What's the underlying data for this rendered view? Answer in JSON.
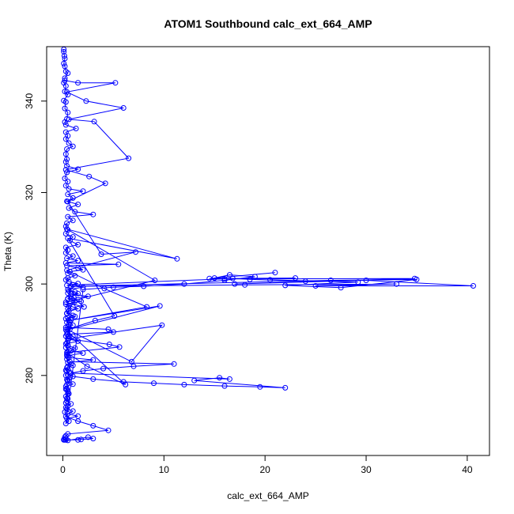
{
  "chart_data": {
    "type": "scatter",
    "title": "ATOM1 Southbound calc_ext_664_AMP",
    "xlabel": "calc_ext_664_AMP",
    "ylabel": "Theta (K)",
    "xlim": [
      -1.6,
      42.2
    ],
    "ylim": [
      262.5,
      351.9
    ],
    "x_ticks": [
      0,
      10,
      20,
      30,
      40
    ],
    "y_ticks": [
      280,
      300,
      320,
      340
    ],
    "grid": false,
    "legend": "none",
    "marker": "open-circle",
    "connected": true,
    "color": "#0000ff",
    "series": [
      {
        "x": [
          0.1,
          0.1,
          0.15,
          0.2,
          0.1,
          0.2,
          0.3,
          0.5,
          0.2,
          0.1,
          0.3,
          0.2,
          0.5,
          0.1,
          0.3,
          0.2,
          0.5,
          0.4,
          0.2,
          0.3,
          1.3,
          0.3,
          0.5,
          0.3,
          0.6,
          1.0,
          0.4,
          0.3,
          0.4,
          0.3,
          0.4,
          1.5,
          0.4,
          0.2,
          0.5,
          0.3,
          0.6,
          2.0,
          0.5,
          1.0,
          0.4,
          1.5,
          0.6,
          1.2,
          3.0,
          0.5,
          1.0,
          0.4,
          0.3,
          0.5,
          0.3,
          1.0,
          0.7,
          1.5,
          0.3,
          0.5,
          0.3,
          1.0,
          0.4,
          1.5,
          0.3,
          5.5,
          0.4,
          1.5,
          2.0,
          0.7,
          0.5,
          1.2,
          0.5,
          0.3,
          0.6,
          1.5,
          0.4,
          2.0,
          0.5,
          1.2,
          0.8,
          2.5,
          0.5,
          1.8,
          0.3,
          1.0,
          1.5,
          0.6,
          0.4,
          1.2,
          0.3,
          0.7,
          1.0,
          0.3,
          4.5,
          5.0,
          0.4,
          1.0,
          0.5,
          1.5,
          0.3,
          0.5,
          1.2,
          0.8,
          2.0,
          0.4,
          0.6,
          3.0,
          0.5,
          1.0,
          0.4,
          0.3,
          0.6,
          0.5,
          0.7,
          0.4,
          0.5,
          1.0,
          0.3,
          0.4,
          0.5,
          0.6,
          0.3,
          0.5,
          0.4,
          0.8,
          0.5,
          0.4,
          1.0,
          0.5,
          1.5,
          0.4,
          0.6,
          0.3,
          2.0,
          5.0,
          8.0,
          12.0,
          16.0,
          19.0,
          16.5,
          15.0,
          21.0,
          14.5,
          23.0,
          16.0,
          34.8,
          17.0,
          30.0,
          40.6,
          25.0,
          33.0,
          18.0,
          0.8,
          26.5,
          35.0,
          27.5,
          22.0,
          29.2,
          20.5,
          24.0,
          18.5,
          16.8,
          1.0,
          0.6,
          1.5,
          0.8,
          0.5,
          1.2,
          0.7,
          0.6,
          0.5,
          0.6,
          0.4,
          1.0,
          0.5,
          0.8,
          0.4,
          0.6,
          0.5,
          0.7,
          0.4,
          0.5,
          0.3,
          0.6,
          0.5,
          0.4,
          0.5,
          0.3,
          0.6,
          0.5,
          0.4,
          0.5,
          0.4,
          1.0,
          3.0,
          6.0,
          9.0,
          12.0,
          16.0,
          19.5,
          22.0,
          13.0,
          15.5,
          16.5,
          0.8,
          2.0,
          4.0,
          7.0,
          11.0,
          0.7,
          0.5,
          0.4,
          0.3,
          0.5,
          0.4,
          0.3,
          0.5,
          0.4,
          0.3,
          0.3,
          0.2,
          0.3,
          1.5,
          3.0,
          4.5,
          0.5,
          0.3,
          0.2,
          0.3,
          0.1,
          0.2,
          0.3,
          0.5,
          2.5,
          3.0,
          1.8,
          1.5,
          0.1
        ],
        "y": [
          351.3,
          350.8,
          349.9,
          349.3,
          348.2,
          347.6,
          346.5,
          346.1,
          345.0,
          344.0,
          343.3,
          342.1,
          341.4,
          340.1,
          339.8,
          338.4,
          337.5,
          336.1,
          335.4,
          334.8,
          334.0,
          333.2,
          332.4,
          331.7,
          330.8,
          330.1,
          329.5,
          328.4,
          327.3,
          326.7,
          325.8,
          325.1,
          324.4,
          323.1,
          322.4,
          321.5,
          320.8,
          320.3,
          319.6,
          318.8,
          318.1,
          317.4,
          316.6,
          315.8,
          315.2,
          314.7,
          313.9,
          313.3,
          312.6,
          311.8,
          311.0,
          310.3,
          309.5,
          308.6,
          308.0,
          307.4,
          306.8,
          306.1,
          305.6,
          305.1,
          304.6,
          304.3,
          304.0,
          303.5,
          303.1,
          302.7,
          302.3,
          301.8,
          301.3,
          300.9,
          300.5,
          300.1,
          299.7,
          299.3,
          298.8,
          298.3,
          297.8,
          297.3,
          296.7,
          296.2,
          295.6,
          295.0,
          294.6,
          294.0,
          293.5,
          292.9,
          292.4,
          291.7,
          291.0,
          290.5,
          290.1,
          289.5,
          289.0,
          288.6,
          288.0,
          287.5,
          286.9,
          286.5,
          286.0,
          285.4,
          284.9,
          284.3,
          283.9,
          283.4,
          282.8,
          282.2,
          281.7,
          281.1,
          280.7,
          280.1,
          279.6,
          279.1,
          278.7,
          278.1,
          277.6,
          277.0,
          276.5,
          276.0,
          275.4,
          274.9,
          274.4,
          273.8,
          273.3,
          272.7,
          272.2,
          271.6,
          271.1,
          270.6,
          270.0,
          269.5,
          298.8,
          299.3,
          299.5,
          300.0,
          300.8,
          301.6,
          302.0,
          301.3,
          302.5,
          301.2,
          301.3,
          301.1,
          301.2,
          300.0,
          300.8,
          299.6,
          299.6,
          300.0,
          299.8,
          299.5,
          300.8,
          301.0,
          299.2,
          299.7,
          300.4,
          300.9,
          300.6,
          301.0,
          301.2,
          299.8,
          298.5,
          297.9,
          297.3,
          296.8,
          296.2,
          295.7,
          295.2,
          294.6,
          294.1,
          293.6,
          293.1,
          292.6,
          292.1,
          291.6,
          291.1,
          290.6,
          290.1,
          289.6,
          289.1,
          288.6,
          288.1,
          287.6,
          287.1,
          286.6,
          286.1,
          285.6,
          285.1,
          284.6,
          284.1,
          283.6,
          279.8,
          279.2,
          278.6,
          278.3,
          278.0,
          277.7,
          277.5,
          277.3,
          278.9,
          279.5,
          279.2,
          280.5,
          281.0,
          281.5,
          282.0,
          282.5,
          283.0,
          282.0,
          281.0,
          280.0,
          279.0,
          278.0,
          277.0,
          276.0,
          275.0,
          274.0,
          273.0,
          272.0,
          271.0,
          270.0,
          269.0,
          268.0,
          267.2,
          266.8,
          266.5,
          266.2,
          266.0,
          265.9,
          265.9,
          265.8,
          266.5,
          266.2,
          266.0,
          265.9,
          265.9
        ]
      },
      {
        "x": [
          0.2,
          1.5,
          5.2,
          0.4,
          2.3,
          6.0,
          0.6,
          3.1,
          6.5,
          0.3,
          2.6,
          4.2,
          0.5,
          3.8,
          7.2,
          0.4,
          4.1,
          8.3,
          0.6,
          9.6,
          0.5,
          6.8,
          9.8,
          0.5,
          4.6,
          5.6,
          0.4,
          2.4,
          6.2,
          0.3,
          3.2,
          5.1,
          0.5,
          11.3,
          0.4,
          9.1,
          0.3,
          2.1,
          0.5,
          1.1
        ],
        "y": [
          344.5,
          344.0,
          344.0,
          342.0,
          340.0,
          338.5,
          336.0,
          335.5,
          327.5,
          325.0,
          323.5,
          322.0,
          318.0,
          306.5,
          307.0,
          303.0,
          299.0,
          295.0,
          292.0,
          295.2,
          290.0,
          283.0,
          291.0,
          288.0,
          286.8,
          286.2,
          285.0,
          282.0,
          278.0,
          290.0,
          292.0,
          293.0,
          310.0,
          305.5,
          312.0,
          300.8,
          296.0,
          295.0,
          298.0,
          297.0
        ]
      }
    ]
  }
}
